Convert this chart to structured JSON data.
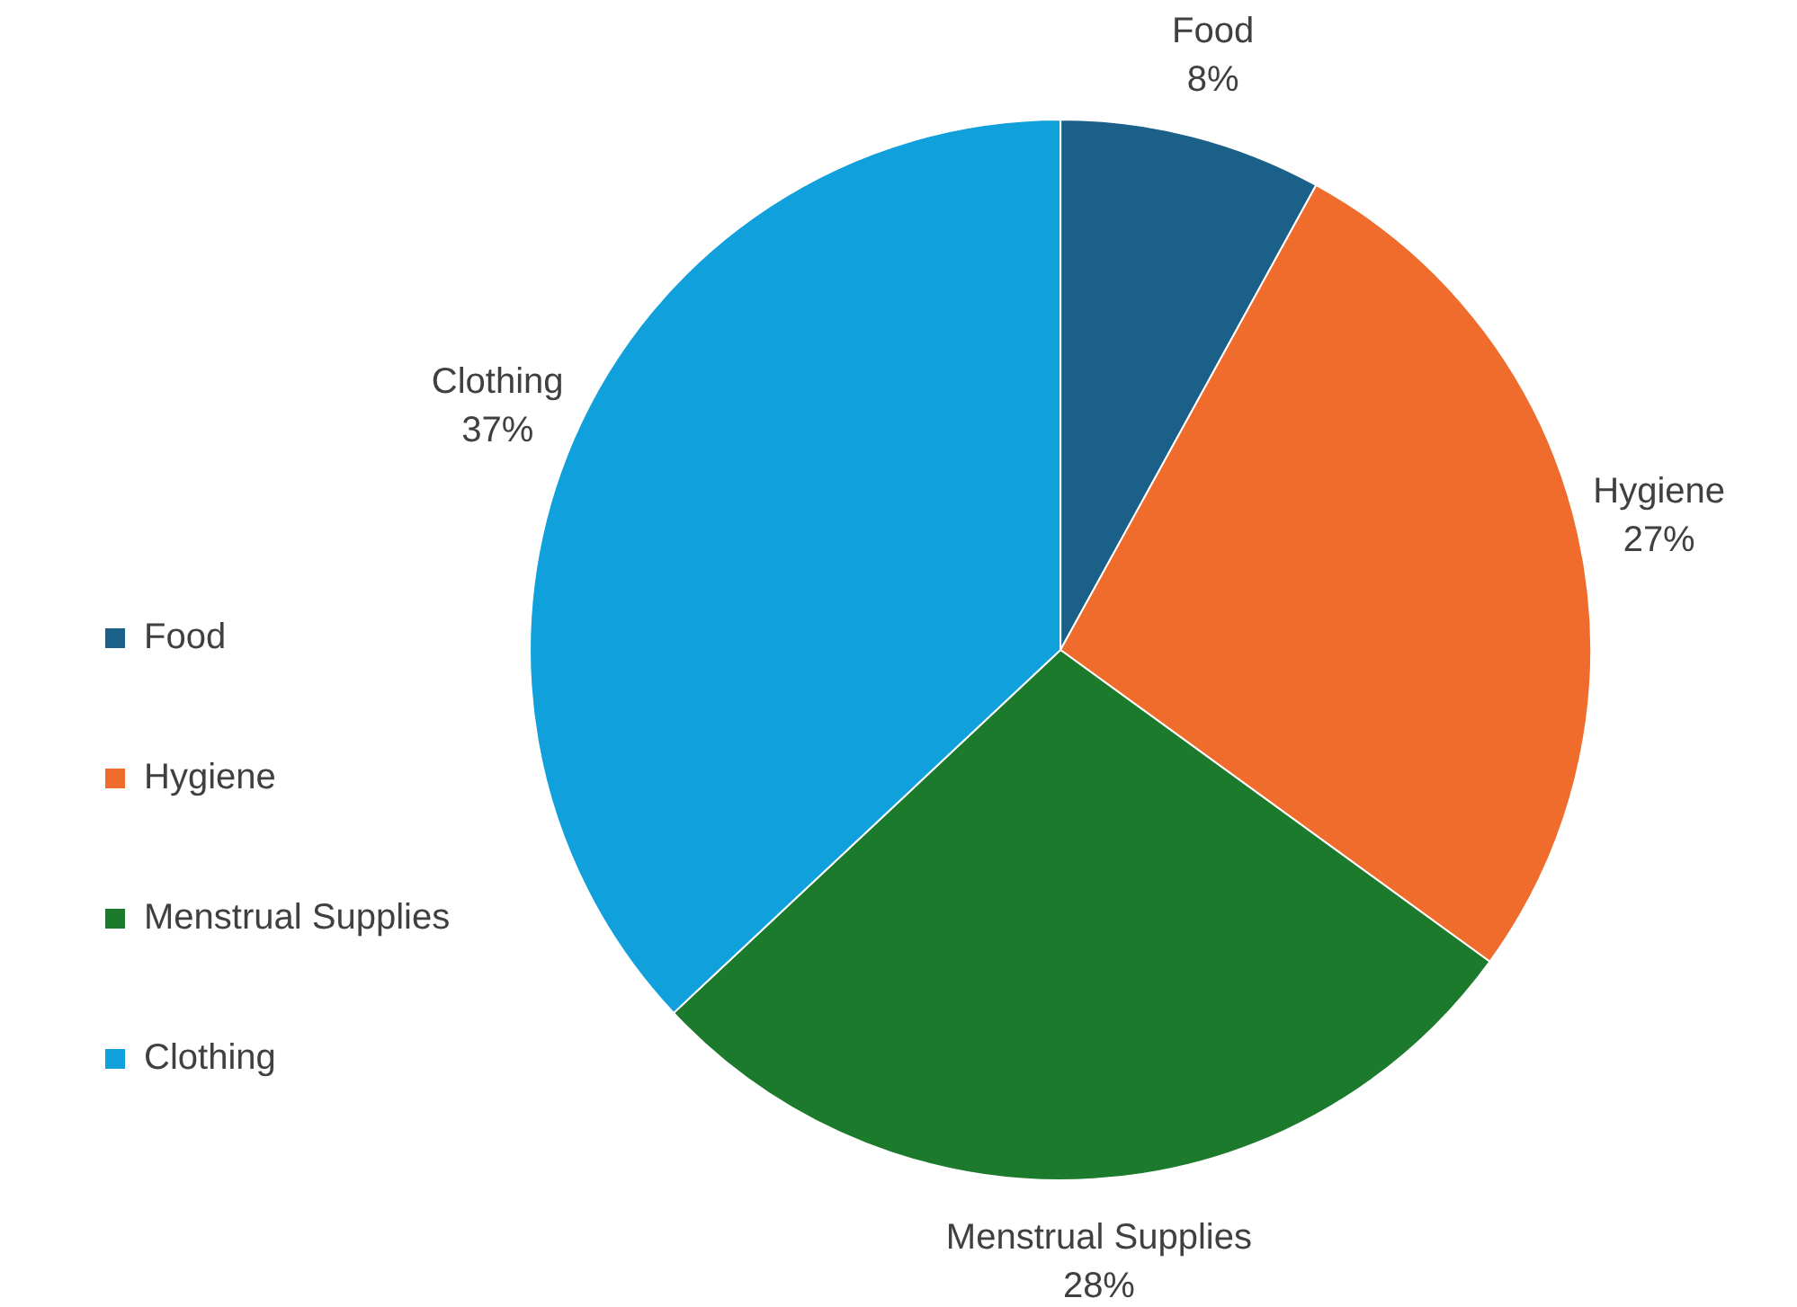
{
  "chart_data": {
    "type": "pie",
    "categories": [
      "Food",
      "Hygiene",
      "Menstrual Supplies",
      "Clothing"
    ],
    "values": [
      8,
      27,
      28,
      37
    ],
    "colors": [
      "#1b6089",
      "#ef6c2c",
      "#1c7a2c",
      "#10a0dc"
    ],
    "value_labels": [
      "8%",
      "27%",
      "28%",
      "37%"
    ],
    "legend": "left"
  }
}
